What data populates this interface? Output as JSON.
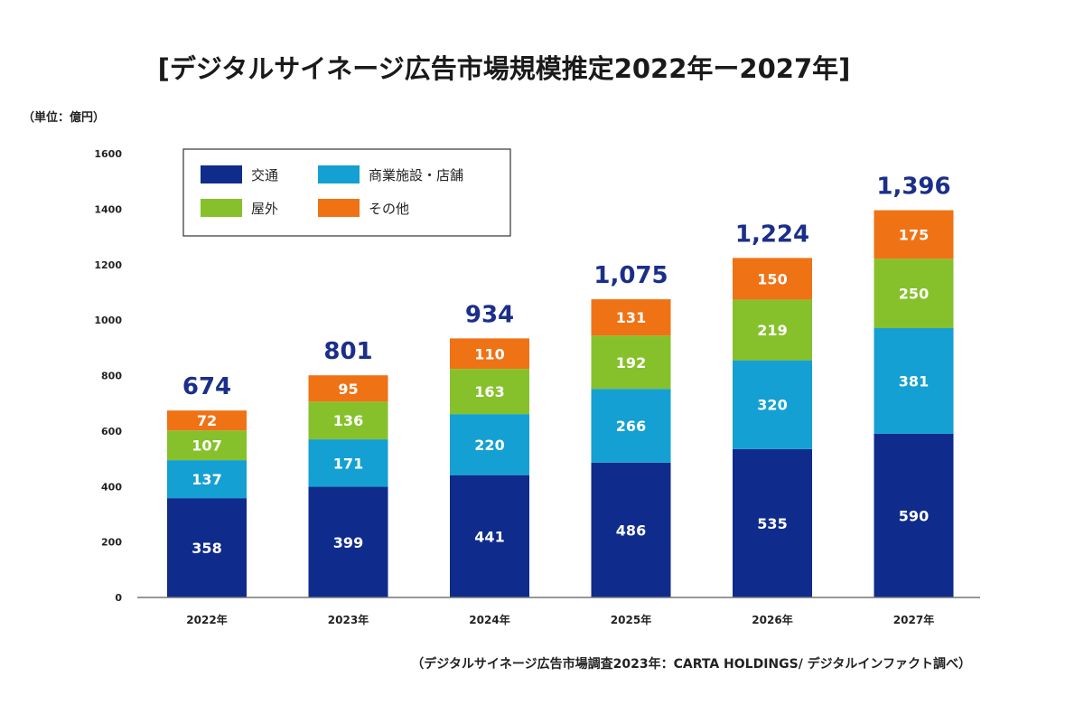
{
  "chart_data": {
    "type": "bar",
    "stacked": true,
    "title": "[デジタルサイネージ広告市場規模推定2022年ー2027年]",
    "unit_label": "（単位：億円）",
    "source": "（デジタルサイネージ広告市場調査2023年：CARTA HOLDINGS/ デジタルインファクト調べ）",
    "categories": [
      "2022年",
      "2023年",
      "2024年",
      "2025年",
      "2026年",
      "2027年"
    ],
    "series": [
      {
        "name": "交通",
        "color": "#0f2b8c",
        "values": [
          358,
          399,
          441,
          486,
          535,
          590
        ]
      },
      {
        "name": "商業施設・店舗",
        "color": "#14a0d2",
        "values": [
          137,
          171,
          220,
          266,
          320,
          381
        ]
      },
      {
        "name": "屋外",
        "color": "#86c12c",
        "values": [
          107,
          136,
          163,
          192,
          219,
          250
        ]
      },
      {
        "name": "その他",
        "color": "#ef7215",
        "values": [
          72,
          95,
          110,
          131,
          150,
          175
        ]
      }
    ],
    "totals": [
      "674",
      "801",
      "934",
      "1,075",
      "1,224",
      "1,396"
    ],
    "total_color": "#1b2f8a",
    "ylim": [
      0,
      1600
    ],
    "yticks": [
      0,
      200,
      400,
      600,
      800,
      1000,
      1200,
      1400,
      1600
    ],
    "legend_position": "top-left",
    "grid": false
  }
}
